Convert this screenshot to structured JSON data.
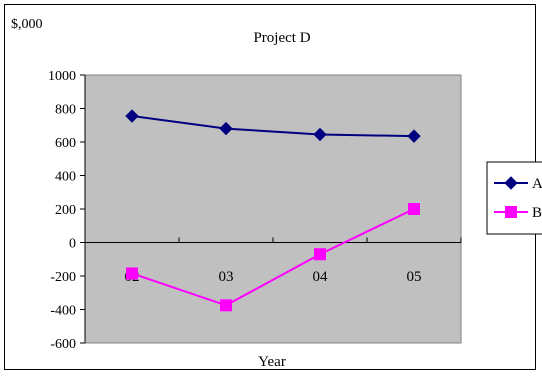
{
  "chart_data": {
    "type": "line",
    "title": "Project D",
    "ylabel": "$,000",
    "xlabel": "Year",
    "categories": [
      "02",
      "03",
      "04",
      "05"
    ],
    "ylim": [
      -600,
      1000
    ],
    "yticks": [
      "1000",
      "800",
      "600",
      "400",
      "200",
      "0",
      "-200",
      "-400",
      "-600"
    ],
    "grid": false,
    "legend_position": "right",
    "plot_background": "#C0C0C0",
    "series": [
      {
        "name": "A",
        "values": [
          755,
          680,
          645,
          635
        ],
        "color": "#000080",
        "marker": "diamond"
      },
      {
        "name": "B",
        "values": [
          -185,
          -375,
          -70,
          200
        ],
        "color": "#FF00FF",
        "marker": "square"
      }
    ]
  }
}
